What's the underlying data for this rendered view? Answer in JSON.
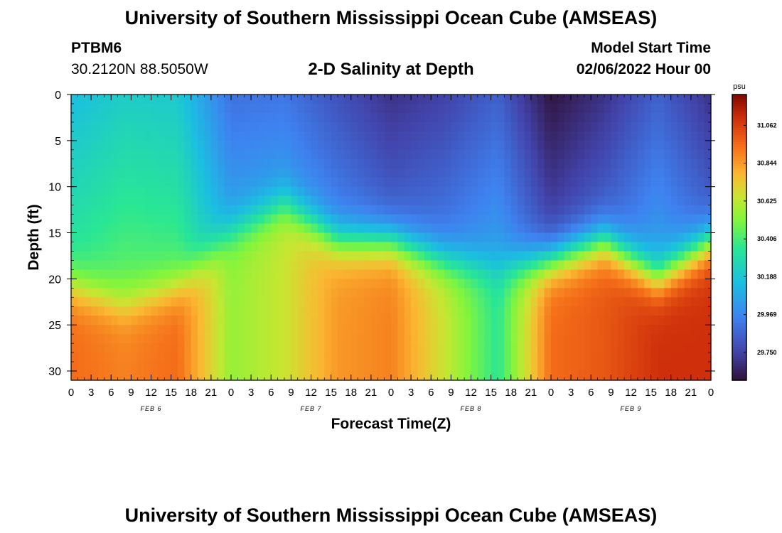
{
  "header": {
    "title": "University of Southern Mississippi Ocean Cube (AMSEAS)",
    "station_id": "PTBM6",
    "station_coords": "30.2120N  88.5050W",
    "plot_title": "2-D Salinity at Depth",
    "model_start_label": "Model Start Time",
    "model_start_value": "02/06/2022 Hour 00"
  },
  "footer": {
    "title": "University of Southern Mississippi Ocean Cube (AMSEAS)"
  },
  "chart_data": {
    "type": "heatmap",
    "title": "2-D Salinity at Depth",
    "xlabel": "Forecast Time(Z)",
    "ylabel": "Depth (ft)",
    "x_tick_labels": [
      "0",
      "3",
      "6",
      "9",
      "12",
      "15",
      "18",
      "21",
      "0",
      "3",
      "6",
      "9",
      "12",
      "15",
      "18",
      "21",
      "0",
      "3",
      "6",
      "9",
      "12",
      "15",
      "18",
      "21",
      "0",
      "3",
      "6",
      "9",
      "12",
      "15",
      "18",
      "21",
      "0"
    ],
    "date_labels": [
      "FEB 6",
      "FEB 7",
      "FEB 8",
      "FEB 9"
    ],
    "x_range_hours": [
      0,
      96
    ],
    "y_ticks": [
      0,
      5,
      10,
      15,
      20,
      25,
      30
    ],
    "ylim": [
      0,
      31
    ],
    "y_inverted": true,
    "colorbar": {
      "unit": "psu",
      "tick_labels": [
        "31.062",
        "30.844",
        "30.625",
        "30.406",
        "30.188",
        "29.969",
        "29.750"
      ],
      "range": [
        29.59,
        31.24
      ]
    },
    "time_hours": [
      0,
      8,
      16,
      24,
      32,
      40,
      48,
      56,
      64,
      72,
      80,
      88,
      96
    ],
    "salinity_profiles": [
      {
        "hour": 0,
        "surface": 30.15,
        "top_layer_bottom_ft": 21,
        "deep": 30.95
      },
      {
        "hour": 8,
        "surface": 30.22,
        "top_layer_bottom_ft": 23,
        "deep": 30.9
      },
      {
        "hour": 16,
        "surface": 30.2,
        "top_layer_bottom_ft": 21,
        "deep": 30.95
      },
      {
        "hour": 24,
        "surface": 29.9,
        "top_layer_bottom_ft": 15,
        "deep": 30.55
      },
      {
        "hour": 32,
        "surface": 29.92,
        "top_layer_bottom_ft": 12,
        "deep": 30.65
      },
      {
        "hour": 40,
        "surface": 29.8,
        "top_layer_bottom_ft": 16,
        "deep": 30.85
      },
      {
        "hour": 48,
        "surface": 29.7,
        "top_layer_bottom_ft": 16,
        "deep": 30.9
      },
      {
        "hour": 56,
        "surface": 29.75,
        "top_layer_bottom_ft": 18,
        "deep": 30.65
      },
      {
        "hour": 64,
        "surface": 29.85,
        "top_layer_bottom_ft": 19,
        "deep": 30.35
      },
      {
        "hour": 72,
        "surface": 29.6,
        "top_layer_bottom_ft": 18,
        "deep": 30.95
      },
      {
        "hour": 80,
        "surface": 29.7,
        "top_layer_bottom_ft": 16,
        "deep": 31.0
      },
      {
        "hour": 88,
        "surface": 29.85,
        "top_layer_bottom_ft": 20,
        "deep": 31.1
      },
      {
        "hour": 96,
        "surface": 29.7,
        "top_layer_bottom_ft": 16,
        "deep": 31.1
      }
    ]
  }
}
